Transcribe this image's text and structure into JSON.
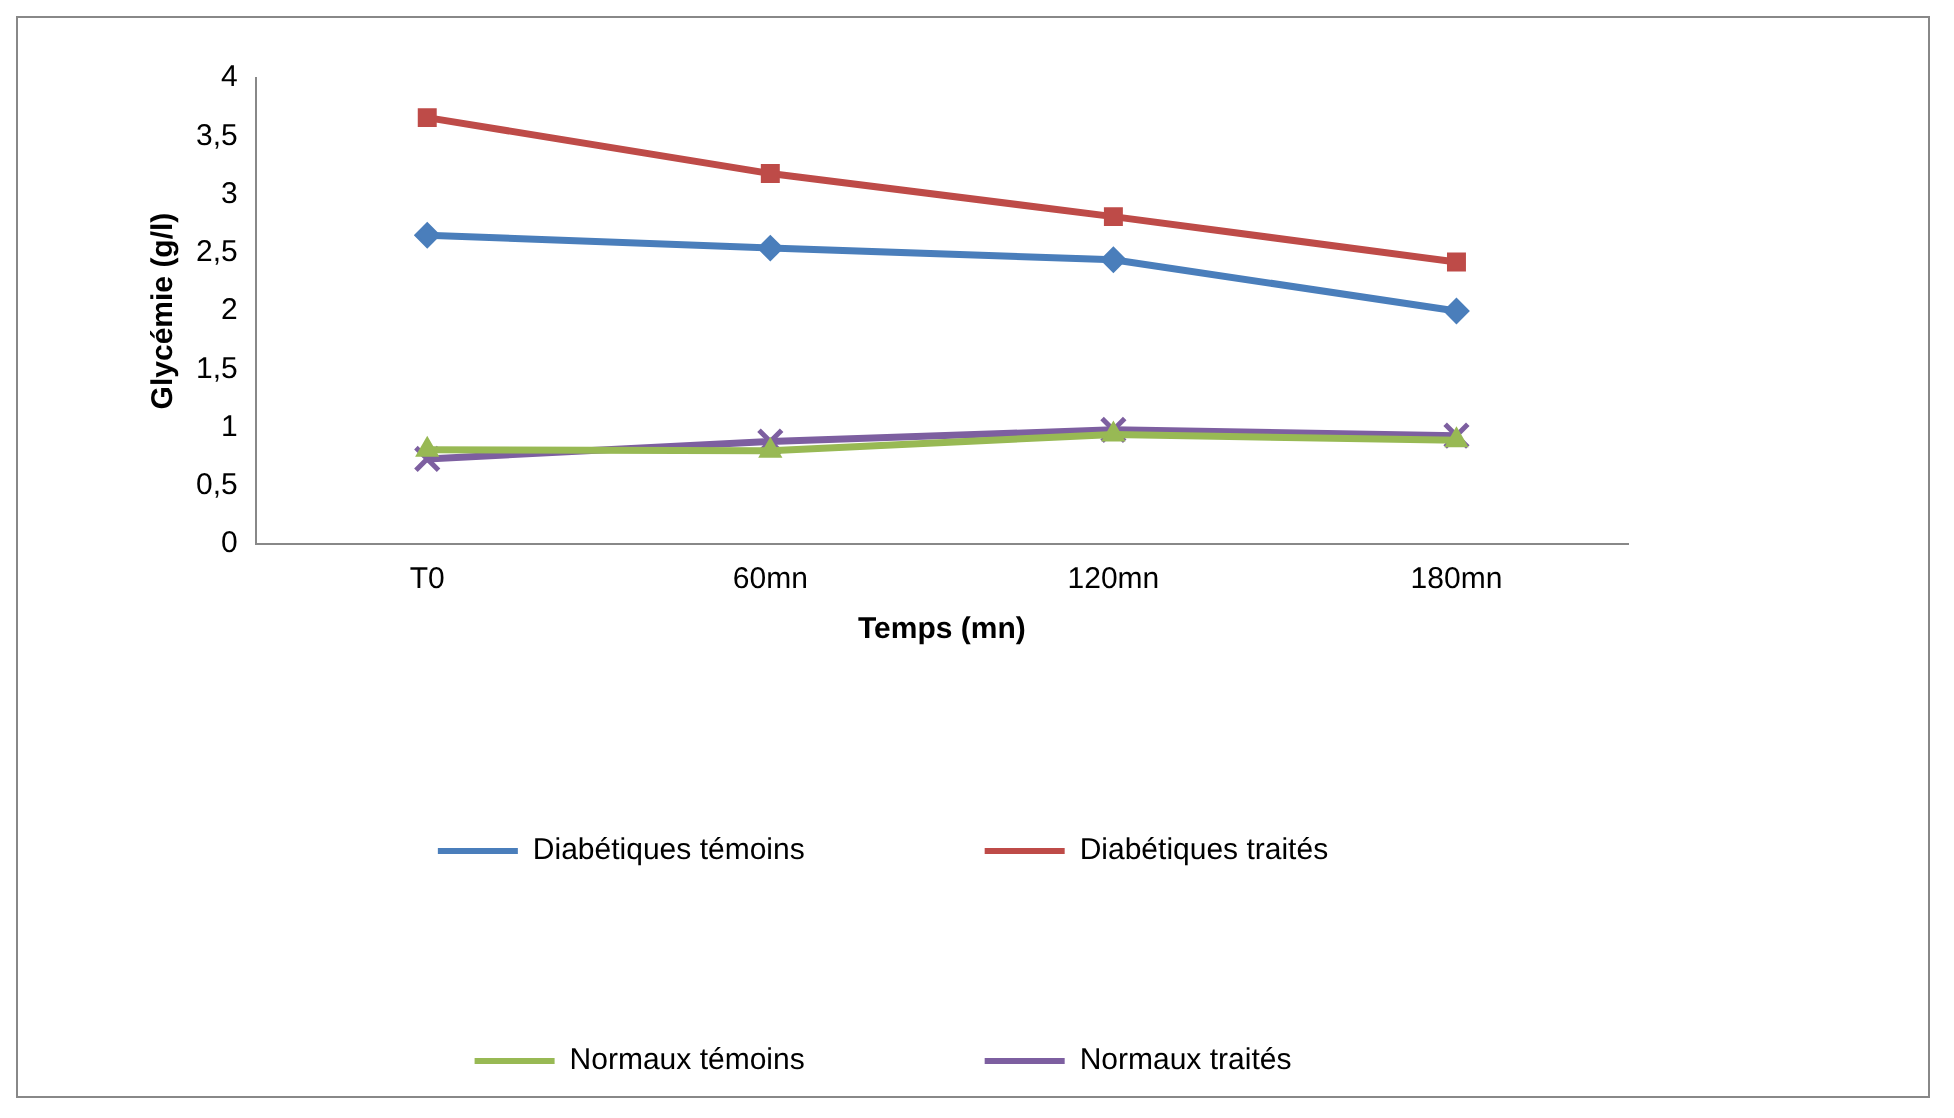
{
  "chart_data": {
    "type": "line",
    "xlabel": "Temps (mn)",
    "ylabel": "Glycémie (g/l)",
    "categories": [
      "T0",
      "60mn",
      "120mn",
      "180mn"
    ],
    "series": [
      {
        "name": "Diabétiques témoins",
        "color": "#4a7ebb",
        "marker": "diamond",
        "values": [
          2.65,
          2.54,
          2.44,
          2.0
        ]
      },
      {
        "name": "Diabétiques traités",
        "color": "#be4b48",
        "marker": "square",
        "values": [
          3.66,
          3.18,
          2.81,
          2.42
        ]
      },
      {
        "name": "Normaux témoins",
        "color": "#98b954",
        "marker": "triangle",
        "values": [
          0.81,
          0.8,
          0.94,
          0.89
        ]
      },
      {
        "name": "Normaux traités",
        "color": "#7d5fa0",
        "marker": "cross",
        "values": [
          0.73,
          0.88,
          0.98,
          0.93
        ]
      }
    ],
    "ylim": [
      0,
      4
    ],
    "yticks": [
      0,
      {
        "value": 0.5,
        "label": "0,5"
      },
      1,
      {
        "value": 1.5,
        "label": "1,5"
      },
      2,
      {
        "value": 2.5,
        "label": "2,5"
      },
      3,
      {
        "value": 3.5,
        "label": "3,5"
      },
      4
    ],
    "grid": false,
    "legend": "bottom",
    "line_style": "solid"
  }
}
